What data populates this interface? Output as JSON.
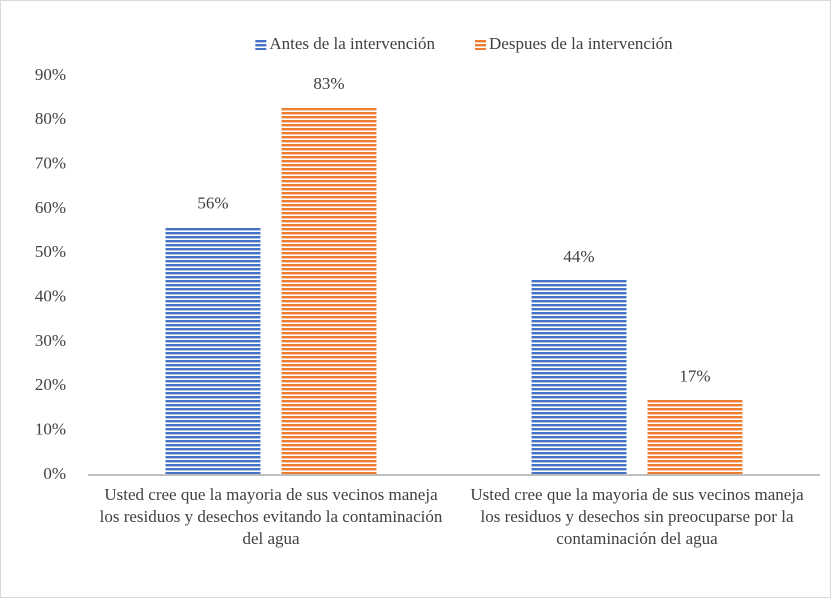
{
  "chart_data": {
    "type": "bar",
    "categories": [
      "Usted cree que la mayoria de sus vecinos maneja los residuos y desechos evitando la contaminación del agua",
      "Usted cree que la mayoria de sus vecinos maneja los residuos y desechos sin preocuparse por la contaminación del agua"
    ],
    "series": [
      {
        "name": "Antes de la intervención",
        "color": "#4472c4",
        "values": [
          56,
          44
        ],
        "value_labels": [
          "56%",
          "44%"
        ]
      },
      {
        "name": "Despues de la intervención",
        "color": "#ed7d31",
        "values": [
          83,
          17
        ],
        "value_labels": [
          "83%",
          "17%"
        ]
      }
    ],
    "ylim": [
      0,
      90
    ],
    "yticks": [
      {
        "value": 0,
        "label": "0%"
      },
      {
        "value": 10,
        "label": "10%"
      },
      {
        "value": 20,
        "label": "20%"
      },
      {
        "value": 30,
        "label": "30%"
      },
      {
        "value": 40,
        "label": "40%"
      },
      {
        "value": 50,
        "label": "50%"
      },
      {
        "value": 60,
        "label": "60%"
      },
      {
        "value": 70,
        "label": "70%"
      },
      {
        "value": 80,
        "label": "80%"
      },
      {
        "value": 90,
        "label": "90%"
      }
    ],
    "grid": false,
    "legend": "top",
    "pattern": "horizontal-stripes"
  }
}
